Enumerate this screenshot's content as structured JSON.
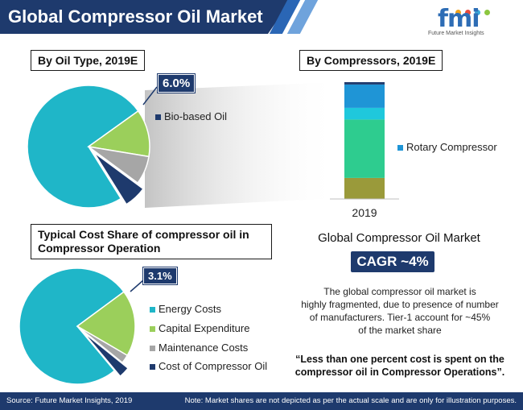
{
  "header": {
    "title": "Global Compressor Oil Market",
    "logo_text": "fmi",
    "logo_sub": "Future Market Insights"
  },
  "colors": {
    "navy": "#1e3a6d",
    "teal": "#1fb6c8",
    "green": "#9bcf5b",
    "gray": "#a6a6a6",
    "blue": "#1f95d6",
    "seagreen": "#2ecc8f",
    "olive": "#9a9a3a"
  },
  "oil_type": {
    "label": "By Oil Type, 2019E",
    "callout": "6.0%"
  },
  "compressors": {
    "label": "By Compressors, 2019E"
  },
  "cost_share": {
    "label_line1": "Typical Cost Share of compressor oil in",
    "label_line2": "Compressor Operation",
    "callout": "3.1%"
  },
  "chart_data": [
    {
      "type": "pie",
      "title": "By Oil Type, 2019E",
      "slices": [
        {
          "name": "",
          "value": 74.0,
          "color": "#1fb6c8"
        },
        {
          "name": "",
          "value": 12.5,
          "color": "#9bcf5b"
        },
        {
          "name": "",
          "value": 7.5,
          "color": "#a6a6a6"
        },
        {
          "name": "Bio-based Oil",
          "value": 6.0,
          "color": "#1e3a6d"
        }
      ],
      "legend": [
        "Bio-based Oil"
      ],
      "annotations": [
        "6.0%"
      ]
    },
    {
      "type": "bar",
      "title": "By Compressors, 2019E",
      "categories": [
        "2019"
      ],
      "stacked": true,
      "series": [
        {
          "name": "",
          "value": 18,
          "color": "#9a9a3a"
        },
        {
          "name": "",
          "value": 50,
          "color": "#2ecc8f"
        },
        {
          "name": "",
          "value": 10,
          "color": "#1fc8dc"
        },
        {
          "name": "Rotary Compressor",
          "value": 20,
          "color": "#1f95d6"
        },
        {
          "name": "",
          "value": 2,
          "color": "#1e3a6d"
        }
      ],
      "legend": [
        "Rotary Compressor"
      ],
      "ylim": [
        0,
        100
      ]
    },
    {
      "type": "pie",
      "title": "Typical Cost Share of compressor oil in Compressor Operation",
      "slices": [
        {
          "name": "Energy Costs",
          "value": 76.0,
          "color": "#1fb6c8"
        },
        {
          "name": "Capital Expenditure",
          "value": 18.5,
          "color": "#9bcf5b"
        },
        {
          "name": "Maintenance Costs",
          "value": 2.4,
          "color": "#a6a6a6"
        },
        {
          "name": "Cost of Compressor Oil",
          "value": 3.1,
          "color": "#1e3a6d"
        }
      ],
      "legend": [
        "Energy Costs",
        "Capital Expenditure",
        "Maintenance Costs",
        "Cost of Compressor Oil"
      ],
      "annotations": [
        "3.1%"
      ]
    }
  ],
  "right_panel": {
    "title": "Global Compressor Oil Market",
    "cagr": "CAGR ~4%",
    "desc_line1": "The global compressor oil market is",
    "desc_line2": "highly fragmented, due to presence of number",
    "desc_line3": "of manufacturers. Tier-1 account for ~45%",
    "desc_line4": "of the market share",
    "quote_line1": "“Less than one percent cost is spent on the",
    "quote_line2": "compressor oil in Compressor Operations”."
  },
  "footer": {
    "source": "Source: Future Market Insights, 2019",
    "note": "Note: Market shares are not depicted as per the actual scale and are only for illustration purposes."
  }
}
